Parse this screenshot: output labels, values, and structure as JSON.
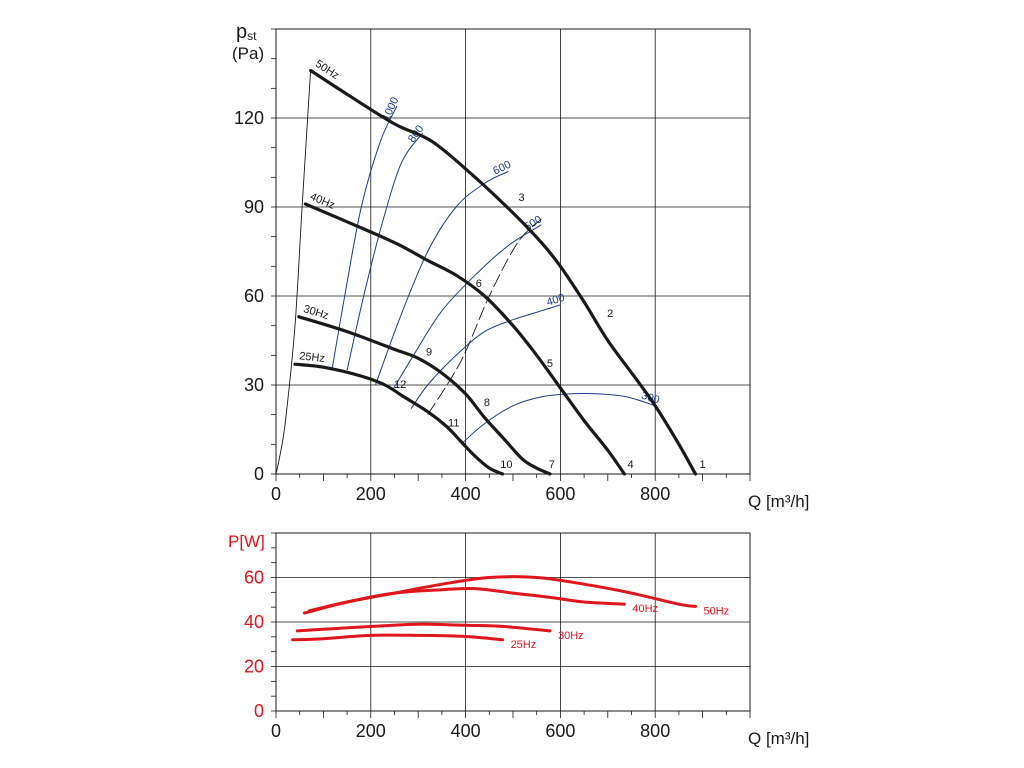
{
  "chart_data": [
    {
      "type": "line",
      "title": "",
      "ylabel_main": "p",
      "ylabel_sub": "st",
      "ylabel_unit": "(Pa)",
      "xlabel": "Q [m³/h]",
      "xlim": [
        0,
        1000
      ],
      "ylim": [
        0,
        150
      ],
      "xticks": [
        0,
        200,
        400,
        600,
        800
      ],
      "yticks": [
        0,
        30,
        60,
        90,
        120
      ],
      "grid": true,
      "colors": {
        "fan_curve": "#1a1a1a",
        "iso_curve": "#1f3d8f",
        "system_line": "#1a1a1a"
      },
      "series": [
        {
          "name": "50Hz",
          "points": [
            [
              73,
              136
            ],
            [
              150,
              128
            ],
            [
              250,
              118
            ],
            [
              330,
              112
            ],
            [
              420,
              100
            ],
            [
              500,
              88
            ],
            [
              560,
              78
            ],
            [
              600,
              70
            ],
            [
              650,
              58
            ],
            [
              700,
              45
            ],
            [
              760,
              32
            ],
            [
              800,
              23
            ],
            [
              850,
              10
            ],
            [
              885,
              0
            ]
          ]
        },
        {
          "name": "40Hz",
          "points": [
            [
              62,
              91
            ],
            [
              150,
              85
            ],
            [
              250,
              78
            ],
            [
              320,
              72
            ],
            [
              380,
              67
            ],
            [
              440,
              60
            ],
            [
              500,
              50
            ],
            [
              550,
              40
            ],
            [
              600,
              29
            ],
            [
              650,
              18
            ],
            [
              700,
              8
            ],
            [
              735,
              0
            ]
          ]
        },
        {
          "name": "30Hz",
          "points": [
            [
              48,
              53
            ],
            [
              150,
              48
            ],
            [
              250,
              42
            ],
            [
              300,
              39
            ],
            [
              350,
              34
            ],
            [
              400,
              27
            ],
            [
              440,
              19
            ],
            [
              480,
              12
            ],
            [
              520,
              5
            ],
            [
              550,
              2
            ],
            [
              578,
              0
            ]
          ]
        },
        {
          "name": "25Hz",
          "points": [
            [
              40,
              37
            ],
            [
              100,
              36
            ],
            [
              180,
              33
            ],
            [
              230,
              30
            ],
            [
              270,
              26
            ],
            [
              320,
              21
            ],
            [
              360,
              16
            ],
            [
              390,
              11
            ],
            [
              420,
              6
            ],
            [
              450,
              2
            ],
            [
              478,
              0
            ]
          ]
        }
      ],
      "iso_curves": [
        {
          "label": "1000",
          "points": [
            [
              118,
              35
            ],
            [
              145,
              60
            ],
            [
              180,
              90
            ],
            [
              220,
              112
            ],
            [
              255,
              124
            ]
          ]
        },
        {
          "label": "800",
          "points": [
            [
              150,
              35
            ],
            [
              185,
              60
            ],
            [
              225,
              85
            ],
            [
              265,
              105
            ],
            [
              310,
              115
            ]
          ]
        },
        {
          "label": "600",
          "points": [
            [
              210,
              30
            ],
            [
              260,
              52
            ],
            [
              320,
              75
            ],
            [
              380,
              90
            ],
            [
              440,
              98
            ],
            [
              490,
              102
            ]
          ]
        },
        {
          "label": "500",
          "points": [
            [
              245,
              28
            ],
            [
              290,
              40
            ],
            [
              350,
              55
            ],
            [
              420,
              67
            ],
            [
              490,
              77
            ],
            [
              560,
              84
            ]
          ]
        },
        {
          "label": "400",
          "points": [
            [
              285,
              22
            ],
            [
              320,
              30
            ],
            [
              380,
              40
            ],
            [
              440,
              48
            ],
            [
              500,
              52
            ],
            [
              560,
              55
            ],
            [
              600,
              57
            ]
          ]
        },
        {
          "label": "300",
          "points": [
            [
              390,
              10
            ],
            [
              440,
              17
            ],
            [
              500,
              23
            ],
            [
              560,
              26
            ],
            [
              620,
              27
            ],
            [
              680,
              27
            ],
            [
              740,
              26
            ],
            [
              800,
              23
            ]
          ]
        }
      ],
      "system_lines": [
        {
          "points": [
            [
              0,
              0
            ],
            [
              8,
              6
            ],
            [
              20,
              18
            ],
            [
              40,
              50
            ],
            [
              55,
              90
            ],
            [
              73,
              136
            ]
          ]
        },
        {
          "points": [
            [
              320,
              20
            ],
            [
              390,
              38
            ],
            [
              450,
              60
            ],
            [
              510,
              78
            ],
            [
              560,
              86
            ]
          ]
        }
      ],
      "point_labels": [
        {
          "text": "1",
          "q": 900,
          "p": 2
        },
        {
          "text": "2",
          "q": 705,
          "p": 53
        },
        {
          "text": "3",
          "q": 518,
          "p": 92
        },
        {
          "text": "4",
          "q": 748,
          "p": 2
        },
        {
          "text": "5",
          "q": 578,
          "p": 36
        },
        {
          "text": "6",
          "q": 428,
          "p": 63
        },
        {
          "text": "7",
          "q": 582,
          "p": 2
        },
        {
          "text": "8",
          "q": 445,
          "p": 23
        },
        {
          "text": "9",
          "q": 323,
          "p": 40
        },
        {
          "text": "10",
          "q": 486,
          "p": 2
        },
        {
          "text": "11",
          "q": 375,
          "p": 16
        },
        {
          "text": "12",
          "q": 262,
          "p": 29
        }
      ]
    },
    {
      "type": "line",
      "title": "",
      "ylabel": "P[W]",
      "xlabel": "Q [m³/h]",
      "xlim": [
        0,
        1000
      ],
      "ylim": [
        0,
        80
      ],
      "xticks": [
        0,
        200,
        400,
        600,
        800
      ],
      "yticks": [
        0,
        20,
        40,
        60
      ],
      "grid": true,
      "colors": {
        "curve": "#e0161e",
        "label": "#e0161e"
      },
      "series": [
        {
          "name": "50Hz",
          "points": [
            [
              70,
              45
            ],
            [
              150,
              49
            ],
            [
              250,
              53
            ],
            [
              350,
              57
            ],
            [
              450,
              60
            ],
            [
              550,
              60
            ],
            [
              650,
              57
            ],
            [
              750,
              53
            ],
            [
              850,
              48
            ],
            [
              885,
              47
            ]
          ]
        },
        {
          "name": "40Hz",
          "points": [
            [
              60,
              44
            ],
            [
              150,
              49
            ],
            [
              250,
              53
            ],
            [
              350,
              54.5
            ],
            [
              420,
              55
            ],
            [
              500,
              53
            ],
            [
              580,
              51
            ],
            [
              650,
              49
            ],
            [
              735,
              48
            ]
          ]
        },
        {
          "name": "30Hz",
          "points": [
            [
              45,
              36
            ],
            [
              120,
              37
            ],
            [
              200,
              38
            ],
            [
              300,
              39
            ],
            [
              400,
              38.5
            ],
            [
              480,
              38
            ],
            [
              578,
              36
            ]
          ]
        },
        {
          "name": "25Hz",
          "points": [
            [
              35,
              32
            ],
            [
              100,
              32.5
            ],
            [
              200,
              34
            ],
            [
              300,
              34
            ],
            [
              400,
              33.5
            ],
            [
              478,
              32
            ]
          ]
        }
      ]
    }
  ]
}
